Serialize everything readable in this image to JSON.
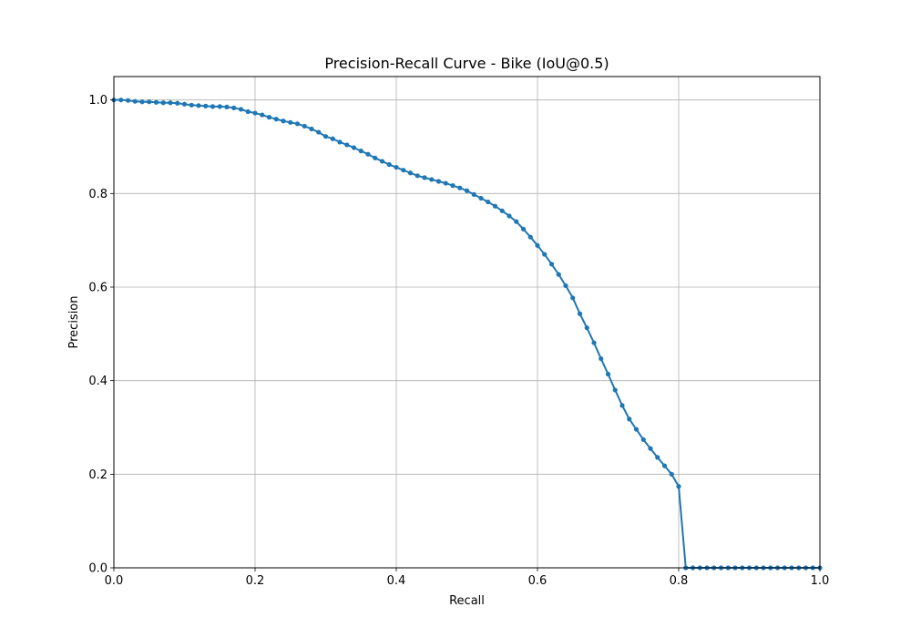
{
  "chart_data": {
    "type": "line",
    "title": "Precision-Recall Curve - Bike (IoU@0.5)",
    "xlabel": "Recall",
    "ylabel": "Precision",
    "xlim": [
      0,
      1
    ],
    "ylim": [
      0,
      1.05
    ],
    "x_ticks": [
      "0.0",
      "0.2",
      "0.4",
      "0.6",
      "0.8",
      "1.0"
    ],
    "y_ticks": [
      "0.0",
      "0.2",
      "0.4",
      "0.6",
      "0.8",
      "1.0"
    ],
    "grid": true,
    "markers": true,
    "line_color": "#1f77b4",
    "series": [
      {
        "x": [
          0.0,
          0.01,
          0.02,
          0.03,
          0.04,
          0.05,
          0.06,
          0.07,
          0.08,
          0.09,
          0.1,
          0.11,
          0.12,
          0.13,
          0.14,
          0.15,
          0.16,
          0.17,
          0.18,
          0.19,
          0.2,
          0.21,
          0.22,
          0.23,
          0.24,
          0.25,
          0.26,
          0.27,
          0.28,
          0.29,
          0.3,
          0.31,
          0.32,
          0.33,
          0.34,
          0.35,
          0.36,
          0.37,
          0.38,
          0.39,
          0.4,
          0.41,
          0.42,
          0.43,
          0.44,
          0.45,
          0.46,
          0.47,
          0.48,
          0.49,
          0.5,
          0.51,
          0.52,
          0.53,
          0.54,
          0.55,
          0.56,
          0.57,
          0.58,
          0.59,
          0.6,
          0.61,
          0.62,
          0.63,
          0.64,
          0.65,
          0.66,
          0.67,
          0.68,
          0.69,
          0.7,
          0.71,
          0.72,
          0.73,
          0.74,
          0.75,
          0.76,
          0.77,
          0.78,
          0.79,
          0.8,
          0.81,
          0.82,
          0.83,
          0.84,
          0.85,
          0.86,
          0.87,
          0.88,
          0.89,
          0.9,
          0.91,
          0.92,
          0.93,
          0.94,
          0.95,
          0.96,
          0.97,
          0.98,
          0.99,
          1.0
        ],
        "y": [
          1.0,
          1.0,
          0.999,
          0.997,
          0.996,
          0.996,
          0.995,
          0.994,
          0.994,
          0.993,
          0.991,
          0.989,
          0.988,
          0.987,
          0.986,
          0.986,
          0.985,
          0.983,
          0.98,
          0.975,
          0.972,
          0.968,
          0.963,
          0.959,
          0.955,
          0.952,
          0.949,
          0.944,
          0.938,
          0.931,
          0.922,
          0.917,
          0.91,
          0.904,
          0.898,
          0.891,
          0.884,
          0.876,
          0.869,
          0.862,
          0.856,
          0.85,
          0.844,
          0.838,
          0.834,
          0.83,
          0.826,
          0.822,
          0.817,
          0.812,
          0.806,
          0.798,
          0.79,
          0.782,
          0.773,
          0.763,
          0.752,
          0.74,
          0.724,
          0.707,
          0.689,
          0.67,
          0.649,
          0.627,
          0.603,
          0.577,
          0.543,
          0.513,
          0.481,
          0.447,
          0.414,
          0.38,
          0.347,
          0.318,
          0.296,
          0.274,
          0.255,
          0.236,
          0.218,
          0.2,
          0.174,
          0.0,
          0.0,
          0.0,
          0.0,
          0.0,
          0.0,
          0.0,
          0.0,
          0.0,
          0.0,
          0.0,
          0.0,
          0.0,
          0.0,
          0.0,
          0.0,
          0.0,
          0.0,
          0.0,
          0.0
        ]
      }
    ]
  }
}
